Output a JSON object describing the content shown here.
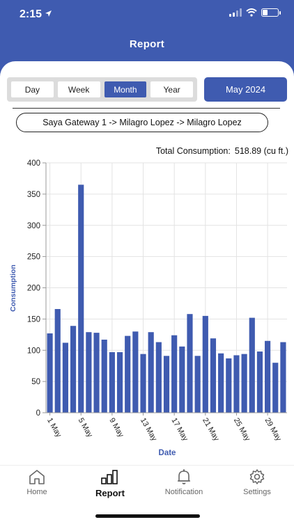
{
  "status": {
    "time": "2:15"
  },
  "header": {
    "title": "Report"
  },
  "period": {
    "options": [
      "Day",
      "Week",
      "Month",
      "Year"
    ],
    "selected": "Month",
    "month_label": "May 2024"
  },
  "path_label": "Saya Gateway 1 -> Milagro Lopez -> Milagro Lopez",
  "total": {
    "label": "Total Consumption:",
    "value": "518.89 (cu ft.)"
  },
  "chart_data": {
    "type": "bar",
    "xlabel": "Date",
    "ylabel": "Consumption",
    "ylim": [
      0,
      400
    ],
    "yticks": [
      0,
      50,
      100,
      150,
      200,
      250,
      300,
      350,
      400
    ],
    "x_tick_labels": [
      "1 May",
      "5 May",
      "9 May",
      "13 May",
      "17 May",
      "21 May",
      "25 May",
      "29 May"
    ],
    "categories": [
      "1",
      "2",
      "3",
      "4",
      "5",
      "6",
      "7",
      "8",
      "9",
      "10",
      "11",
      "12",
      "13",
      "14",
      "15",
      "16",
      "17",
      "18",
      "19",
      "20",
      "21",
      "22",
      "23",
      "24",
      "25",
      "26",
      "27",
      "28",
      "29",
      "30",
      "31"
    ],
    "values": [
      127,
      166,
      112,
      139,
      365,
      129,
      128,
      117,
      97,
      97,
      123,
      130,
      94,
      129,
      113,
      91,
      124,
      106,
      158,
      91,
      155,
      119,
      95,
      87,
      92,
      94,
      152,
      98,
      115,
      80,
      113
    ],
    "bar_color": "#3f5bb0"
  },
  "tabs": [
    {
      "label": "Home",
      "icon": "home-icon"
    },
    {
      "label": "Report",
      "icon": "report-icon"
    },
    {
      "label": "Notification",
      "icon": "bell-icon"
    },
    {
      "label": "Settings",
      "icon": "gear-icon"
    }
  ]
}
